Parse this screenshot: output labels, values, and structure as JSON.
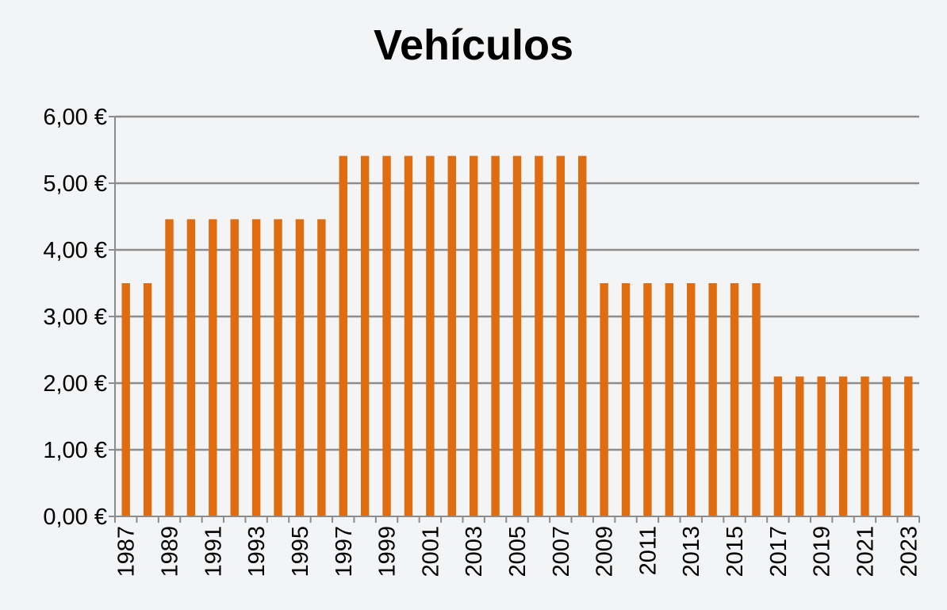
{
  "chart_data": {
    "type": "bar",
    "title": "Vehículos",
    "xlabel": "",
    "ylabel": "",
    "categories": [
      "1987",
      "1988",
      "1989",
      "1990",
      "1991",
      "1992",
      "1993",
      "1994",
      "1995",
      "1996",
      "1997",
      "1998",
      "1999",
      "2000",
      "2001",
      "2002",
      "2003",
      "2004",
      "2005",
      "2006",
      "2007",
      "2008",
      "2009",
      "2010",
      "2011",
      "2012",
      "2013",
      "2014",
      "2015",
      "2016",
      "2017",
      "2018",
      "2019",
      "2020",
      "2021",
      "2022",
      "2023"
    ],
    "x_tick_labels_shown": [
      "1987",
      "1989",
      "1991",
      "1993",
      "1995",
      "1997",
      "1999",
      "2001",
      "2003",
      "2005",
      "2007",
      "2009",
      "2011",
      "2013",
      "2015",
      "2017",
      "2019",
      "2021",
      "2023"
    ],
    "values": [
      3.5,
      3.5,
      4.46,
      4.46,
      4.46,
      4.46,
      4.46,
      4.46,
      4.46,
      4.46,
      5.41,
      5.41,
      5.41,
      5.41,
      5.41,
      5.41,
      5.41,
      5.41,
      5.41,
      5.41,
      5.41,
      5.41,
      3.5,
      3.5,
      3.5,
      3.5,
      3.5,
      3.5,
      3.5,
      3.5,
      2.1,
      2.1,
      2.1,
      2.1,
      2.1,
      2.1,
      2.1
    ],
    "ylim": [
      0,
      6
    ],
    "yticks": [
      0,
      1,
      2,
      3,
      4,
      5,
      6
    ],
    "ytick_labels": [
      "0,00 €",
      "1,00 €",
      "2,00 €",
      "3,00 €",
      "4,00 €",
      "5,00 €",
      "6,00 €"
    ],
    "grid": true,
    "legend": "none",
    "colors": {
      "bar": "#e06c10",
      "grid": "#8c8c8c",
      "axis": "#8c8c8c",
      "background": "#f3f4f6"
    }
  }
}
